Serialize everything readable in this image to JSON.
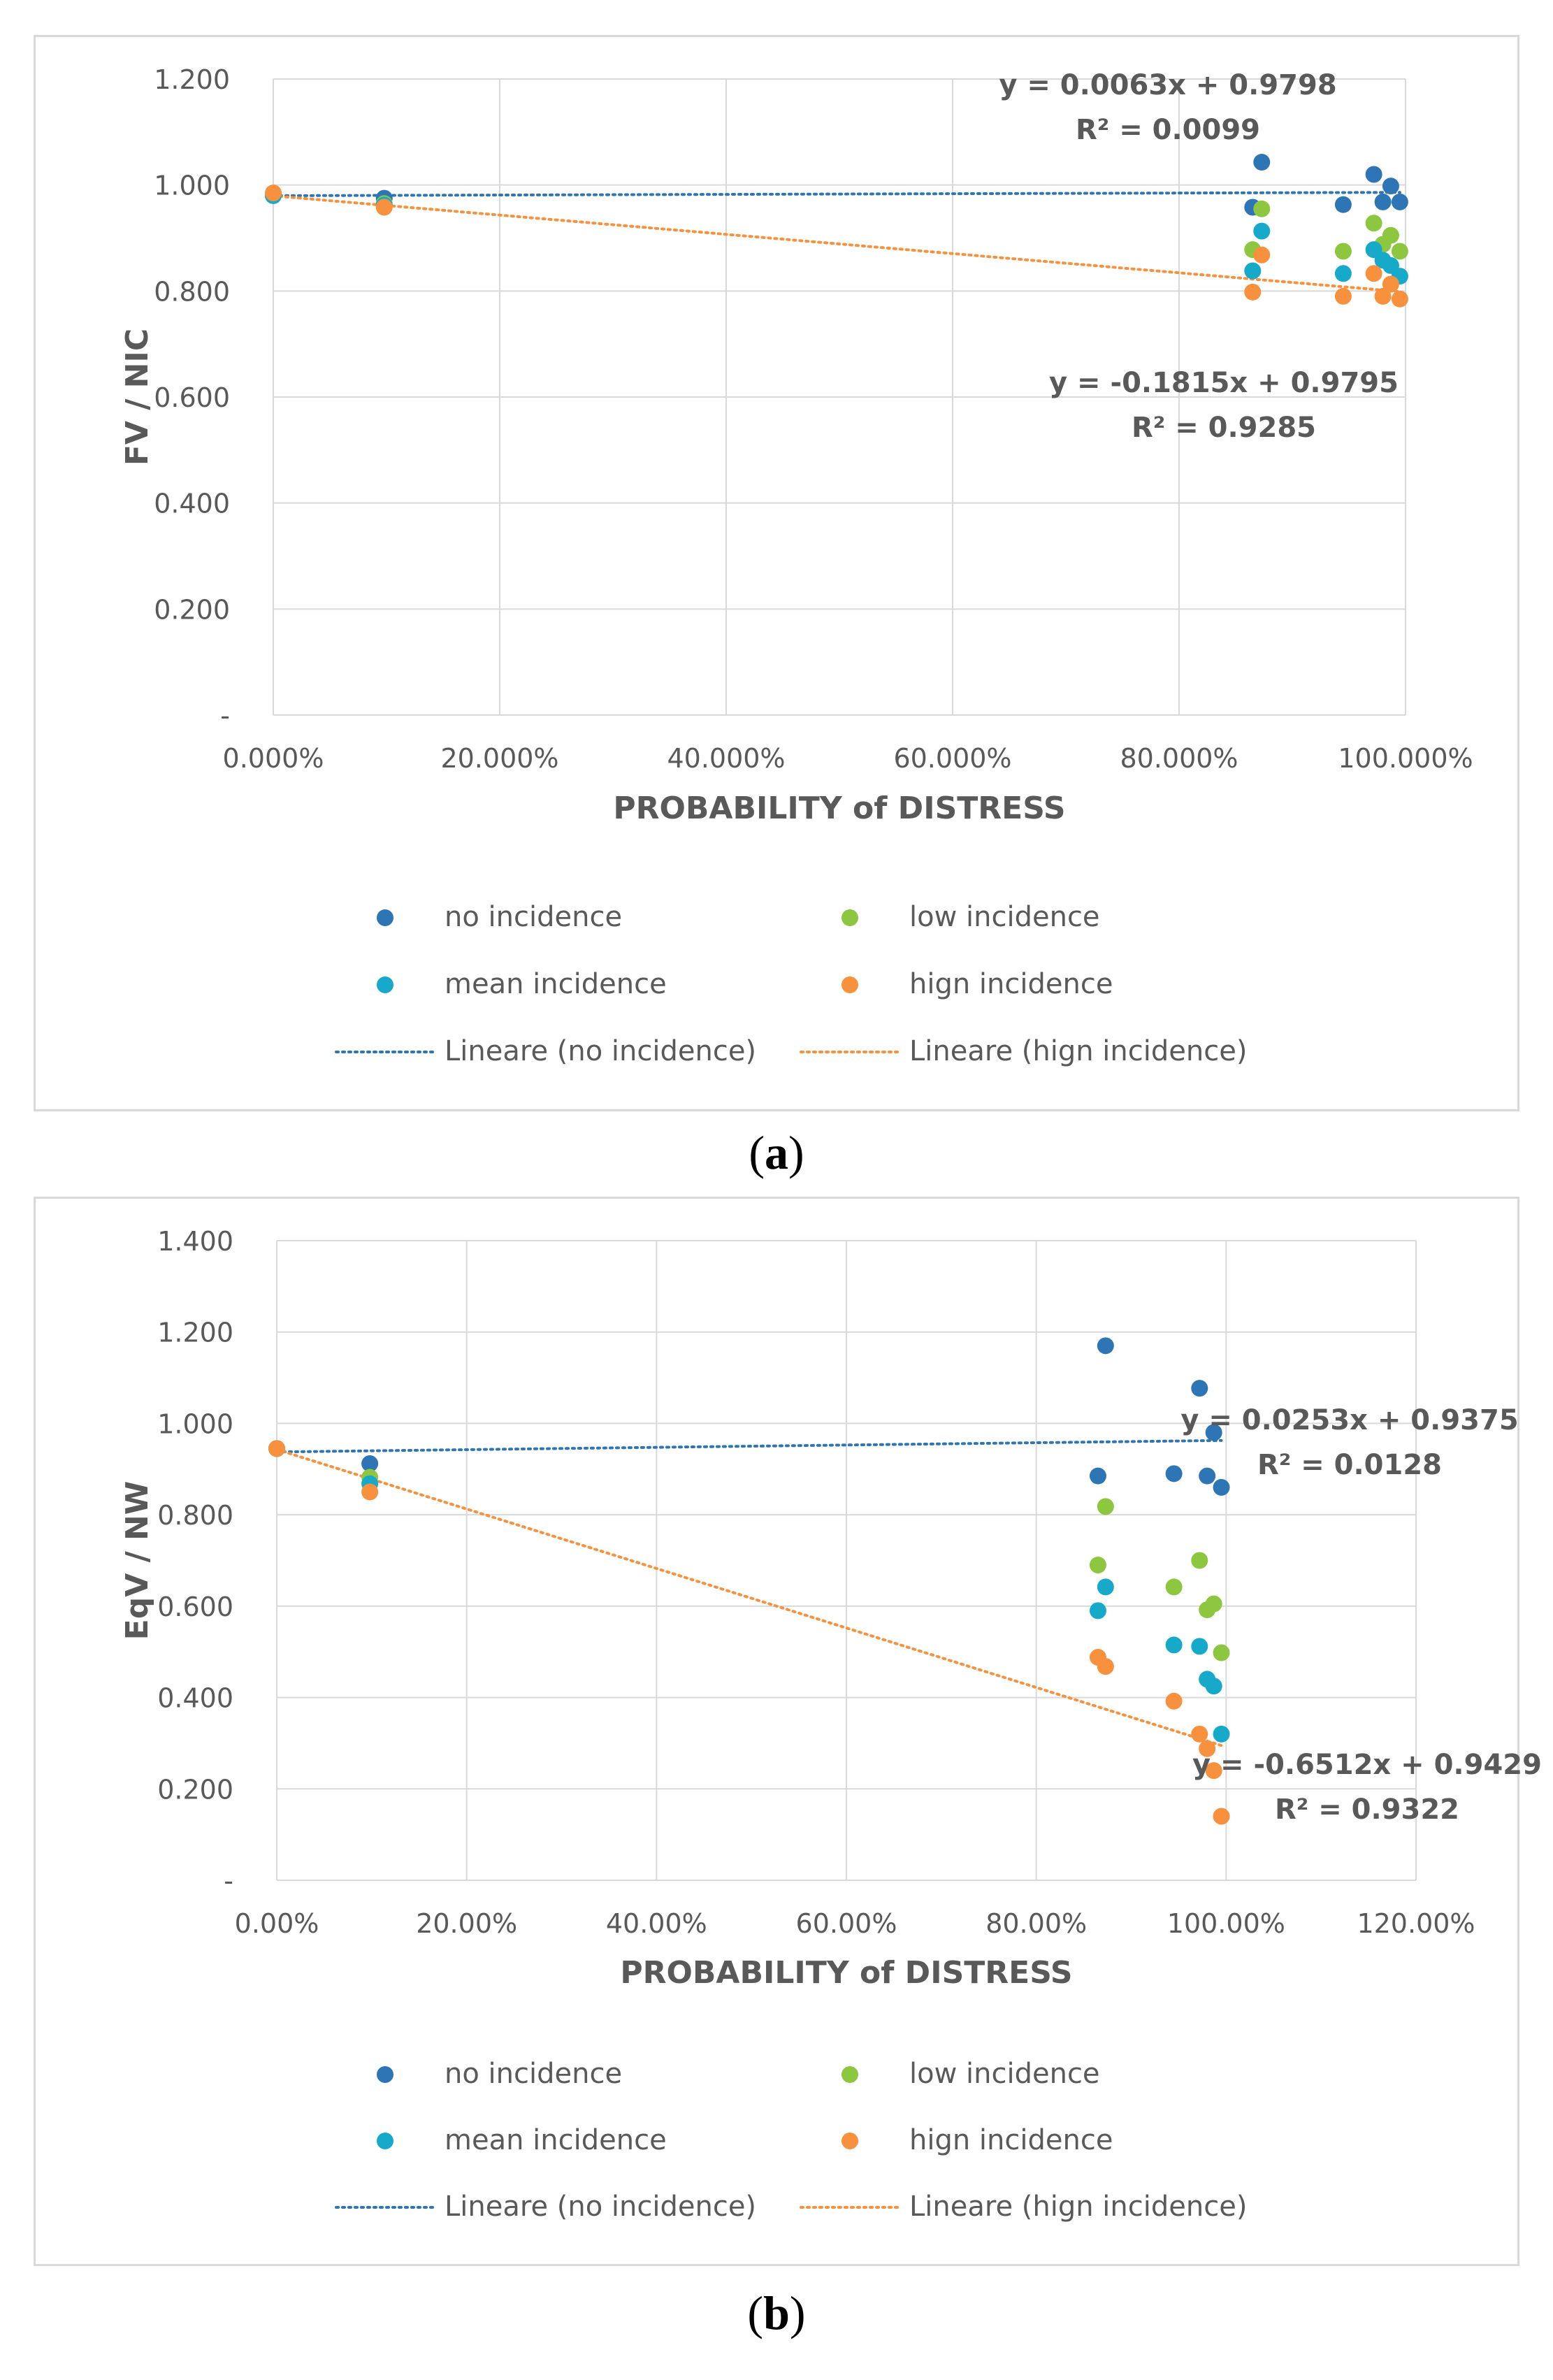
{
  "captions": {
    "a_letter": "a",
    "b_letter": "b"
  },
  "colors": {
    "no": "#2e75b6",
    "low": "#8dc63f",
    "mean": "#17a9c9",
    "high": "#f7913d",
    "grid": "#d9d9d9",
    "text": "#595959"
  },
  "legend": {
    "no": "no incidence",
    "low": "low incidence",
    "mean": "mean incidence",
    "high": "hign incidence",
    "lin_no": "Lineare (no incidence)",
    "lin_high": "Lineare (hign incidence)"
  },
  "chart_data": [
    {
      "type": "scatter",
      "id": "a",
      "ylabel": "FV / NIC",
      "xlabel": "PROBABILITY of DISTRESS",
      "xlim": [
        0,
        1.0
      ],
      "ylim": [
        0,
        1.2
      ],
      "xticks": [
        0,
        0.2,
        0.4,
        0.6,
        0.8,
        1.0
      ],
      "xtick_labels": [
        "0.000%",
        "20.000%",
        "40.000%",
        "60.000%",
        "80.000%",
        "100.000%"
      ],
      "yticks": [
        0,
        0.2,
        0.4,
        0.6,
        0.8,
        1.0,
        1.2
      ],
      "ytick_labels": [
        "-",
        "0.200",
        "0.400",
        "0.600",
        "0.800",
        "1.000",
        "1.200"
      ],
      "series": [
        {
          "key": "no",
          "points": [
            [
              0.0,
              0.98
            ],
            [
              0.098,
              0.975
            ],
            [
              0.865,
              0.958
            ],
            [
              0.873,
              1.043
            ],
            [
              0.945,
              0.963
            ],
            [
              0.972,
              1.02
            ],
            [
              0.98,
              0.968
            ],
            [
              0.987,
              0.998
            ],
            [
              0.995,
              0.968
            ]
          ]
        },
        {
          "key": "low",
          "points": [
            [
              0.0,
              0.98
            ],
            [
              0.098,
              0.965
            ],
            [
              0.865,
              0.878
            ],
            [
              0.873,
              0.955
            ],
            [
              0.945,
              0.875
            ],
            [
              0.972,
              0.928
            ],
            [
              0.98,
              0.888
            ],
            [
              0.987,
              0.905
            ],
            [
              0.995,
              0.875
            ]
          ]
        },
        {
          "key": "mean",
          "points": [
            [
              0.0,
              0.98
            ],
            [
              0.098,
              0.962
            ],
            [
              0.865,
              0.838
            ],
            [
              0.873,
              0.913
            ],
            [
              0.945,
              0.833
            ],
            [
              0.972,
              0.878
            ],
            [
              0.98,
              0.858
            ],
            [
              0.987,
              0.848
            ],
            [
              0.995,
              0.828
            ]
          ]
        },
        {
          "key": "high",
          "points": [
            [
              0.0,
              0.985
            ],
            [
              0.098,
              0.958
            ],
            [
              0.865,
              0.798
            ],
            [
              0.873,
              0.868
            ],
            [
              0.945,
              0.79
            ],
            [
              0.972,
              0.833
            ],
            [
              0.98,
              0.79
            ],
            [
              0.987,
              0.813
            ],
            [
              0.995,
              0.785
            ]
          ]
        }
      ],
      "trendlines": [
        {
          "key": "no",
          "slope": 0.0063,
          "intercept": 0.9798,
          "x_range": [
            0,
            0.995
          ],
          "equation": "y = 0.0063x  + 0.9798",
          "r2": "R² = 0.0099"
        },
        {
          "key": "high",
          "slope": -0.1815,
          "intercept": 0.9795,
          "x_range": [
            0,
            0.995
          ],
          "equation": "y = -0.1815x  + 0.9795",
          "r2": "R² = 0.9285"
        }
      ]
    },
    {
      "type": "scatter",
      "id": "b",
      "ylabel": "EqV / NW",
      "xlabel": "PROBABILITY of DISTRESS",
      "xlim": [
        0,
        1.2
      ],
      "ylim": [
        0,
        1.4
      ],
      "xticks": [
        0,
        0.2,
        0.4,
        0.6,
        0.8,
        1.0,
        1.2
      ],
      "xtick_labels": [
        "0.00%",
        "20.00%",
        "40.00%",
        "60.00%",
        "80.00%",
        "100.00%",
        "120.00%"
      ],
      "yticks": [
        0,
        0.2,
        0.4,
        0.6,
        0.8,
        1.0,
        1.2,
        1.4
      ],
      "ytick_labels": [
        "-",
        "0.200",
        "0.400",
        "0.600",
        "0.800",
        "1.000",
        "1.200",
        "1.400"
      ],
      "series": [
        {
          "key": "no",
          "points": [
            [
              0.0,
              0.945
            ],
            [
              0.098,
              0.912
            ],
            [
              0.865,
              0.885
            ],
            [
              0.873,
              1.17
            ],
            [
              0.945,
              0.89
            ],
            [
              0.972,
              1.077
            ],
            [
              0.98,
              0.885
            ],
            [
              0.987,
              0.98
            ],
            [
              0.995,
              0.86
            ]
          ]
        },
        {
          "key": "low",
          "points": [
            [
              0.0,
              0.945
            ],
            [
              0.098,
              0.882
            ],
            [
              0.865,
              0.69
            ],
            [
              0.873,
              0.818
            ],
            [
              0.945,
              0.642
            ],
            [
              0.972,
              0.7
            ],
            [
              0.98,
              0.592
            ],
            [
              0.987,
              0.605
            ],
            [
              0.995,
              0.498
            ]
          ]
        },
        {
          "key": "mean",
          "points": [
            [
              0.0,
              0.945
            ],
            [
              0.098,
              0.868
            ],
            [
              0.865,
              0.59
            ],
            [
              0.873,
              0.642
            ],
            [
              0.945,
              0.515
            ],
            [
              0.972,
              0.512
            ],
            [
              0.98,
              0.44
            ],
            [
              0.987,
              0.425
            ],
            [
              0.995,
              0.32
            ]
          ]
        },
        {
          "key": "high",
          "points": [
            [
              0.0,
              0.945
            ],
            [
              0.098,
              0.85
            ],
            [
              0.865,
              0.488
            ],
            [
              0.873,
              0.468
            ],
            [
              0.945,
              0.392
            ],
            [
              0.972,
              0.32
            ],
            [
              0.98,
              0.288
            ],
            [
              0.987,
              0.24
            ],
            [
              0.995,
              0.14
            ]
          ]
        }
      ],
      "trendlines": [
        {
          "key": "no",
          "slope": 0.0253,
          "intercept": 0.9375,
          "x_range": [
            0,
            0.995
          ],
          "equation": "y = 0.0253x  + 0.9375",
          "r2": "R² = 0.0128"
        },
        {
          "key": "high",
          "slope": -0.6512,
          "intercept": 0.9429,
          "x_range": [
            0,
            0.995
          ],
          "equation": "y = -0.6512x  + 0.9429",
          "r2": "R² = 0.9322"
        }
      ]
    }
  ]
}
